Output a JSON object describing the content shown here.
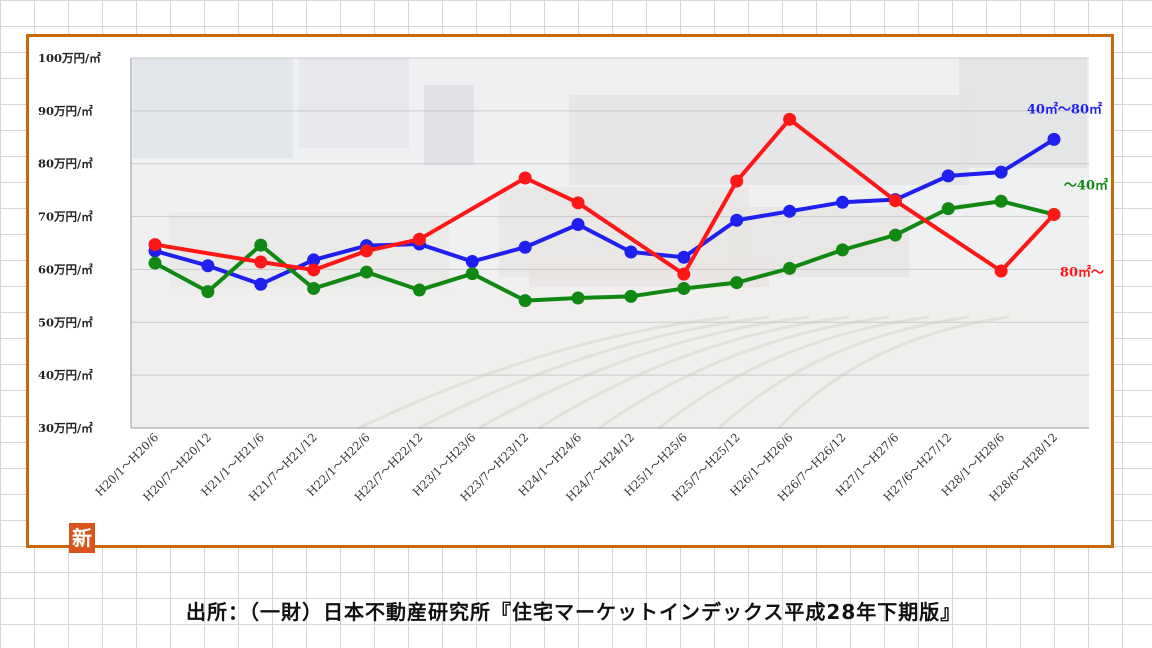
{
  "logo_text": "新",
  "source_text": "出所：（一財）日本不動産研究所『住宅マーケットインデックス平成28年下期版』",
  "chart_data": {
    "type": "line",
    "title": "",
    "xlabel": "",
    "ylabel": "",
    "ylim": [
      30,
      100
    ],
    "grid": "horizontal",
    "y_ticks": [
      {
        "value": 100,
        "label": "100万円/㎡"
      },
      {
        "value": 90,
        "label": "90万円/㎡"
      },
      {
        "value": 80,
        "label": "80万円/㎡"
      },
      {
        "value": 70,
        "label": "70万円/㎡"
      },
      {
        "value": 60,
        "label": "60万円/㎡"
      },
      {
        "value": 50,
        "label": "50万円/㎡"
      },
      {
        "value": 40,
        "label": "40万円/㎡"
      },
      {
        "value": 30,
        "label": "30万円/㎡"
      }
    ],
    "categories": [
      "H20/1～H20/6",
      "H20/7～H20/12",
      "H21/1～H21/6",
      "H21/7～H21/12",
      "H22/1～H22/6",
      "H22/7～H22/12",
      "H23/1～H23/6",
      "H23/7～H23/12",
      "H24/1～H24/6",
      "H24/7～H24/12",
      "H25/1～H25/6",
      "H25/7～H25/12",
      "H26/1～H26/6",
      "H26/7～H26/12",
      "H27/1～H27/6",
      "H27/6～H27/12",
      "H28/1～H28/6",
      "H28/6～H28/12"
    ],
    "series": [
      {
        "name": "40㎡～80㎡",
        "color": "#1f1fef",
        "values": [
          63.5,
          60.7,
          57.2,
          61.8,
          64.5,
          64.8,
          61.5,
          64.2,
          68.5,
          63.3,
          62.3,
          69.3,
          71.0,
          72.7,
          73.2,
          77.7,
          78.4,
          84.6
        ],
        "label_anchor": "top-end"
      },
      {
        "name": "～40㎡",
        "color": "#118811",
        "values": [
          61.2,
          55.8,
          64.6,
          56.4,
          59.5,
          56.1,
          59.2,
          54.1,
          54.6,
          54.9,
          56.4,
          57.5,
          60.2,
          63.7,
          66.5,
          71.5,
          72.9,
          70.4
        ],
        "label_anchor": "end"
      },
      {
        "name": "80㎡～",
        "color": "#ff1717",
        "values": [
          64.7,
          null,
          61.4,
          59.9,
          63.5,
          65.7,
          null,
          77.3,
          72.6,
          null,
          59.1,
          76.7,
          88.4,
          null,
          73.0,
          null,
          59.7,
          70.4
        ],
        "label_anchor": "below-end"
      }
    ]
  }
}
